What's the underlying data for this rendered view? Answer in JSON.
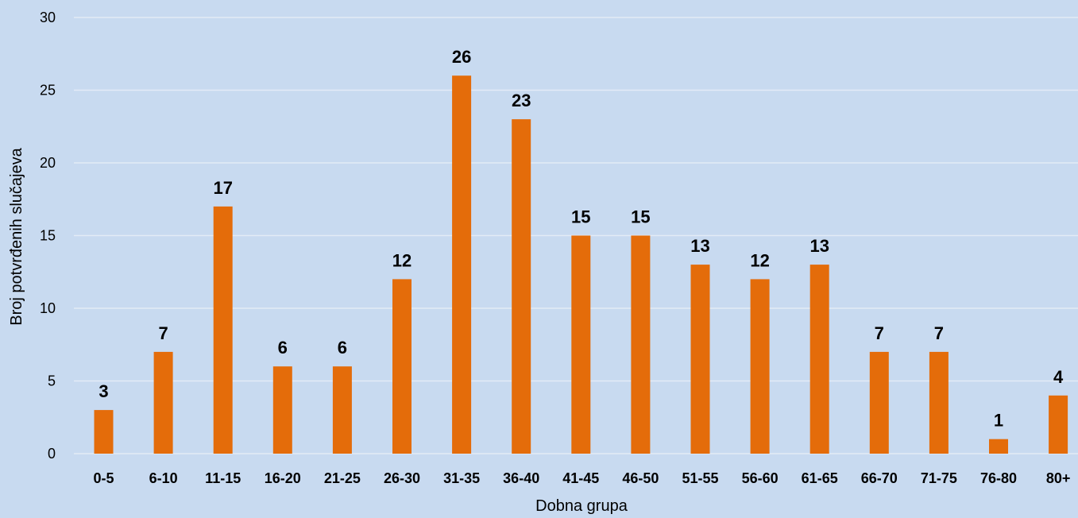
{
  "colors": {
    "background": "#c8daf0",
    "bar": "#e46c0a",
    "gridline": "#e3ebf6"
  },
  "chart_data": {
    "type": "bar",
    "title": "",
    "xlabel": "Dobna grupa",
    "ylabel": "Broj potvrđenih slučajeva",
    "categories": [
      "0-5",
      "6-10",
      "11-15",
      "16-20",
      "21-25",
      "26-30",
      "31-35",
      "36-40",
      "41-45",
      "46-50",
      "51-55",
      "56-60",
      "61-65",
      "66-70",
      "71-75",
      "76-80",
      "80+"
    ],
    "values": [
      3,
      7,
      17,
      6,
      6,
      12,
      26,
      23,
      15,
      15,
      13,
      12,
      13,
      7,
      7,
      1,
      4
    ],
    "ylim": [
      0,
      30
    ],
    "yticks": [
      0,
      5,
      10,
      15,
      20,
      25,
      30
    ],
    "grid": "horizontal",
    "legend": "none",
    "data_labels": true
  }
}
